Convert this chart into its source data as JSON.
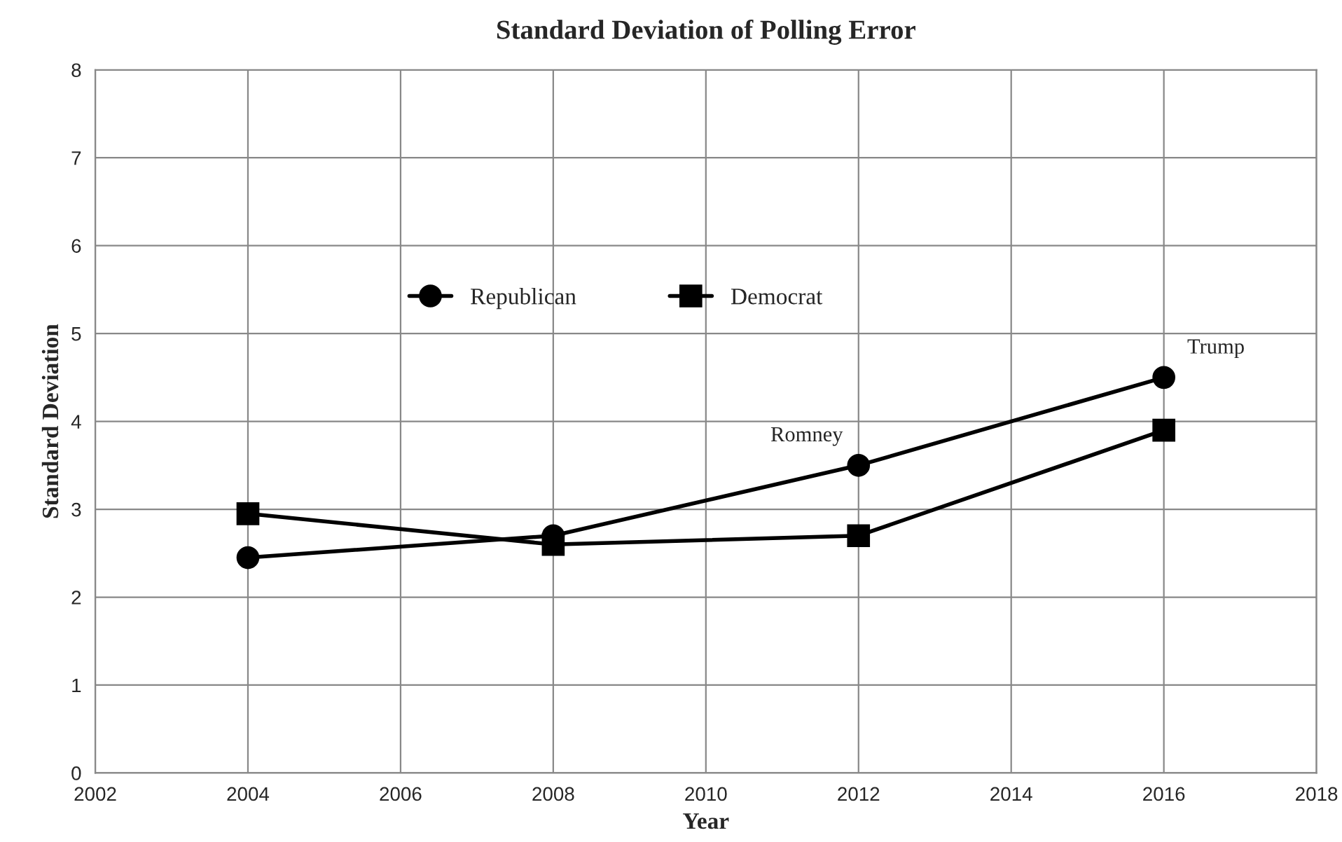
{
  "chart_data": {
    "type": "line",
    "title": "Standard Deviation of Polling Error",
    "xlabel": "Year",
    "ylabel": "Standard Deviation",
    "x": [
      2004,
      2008,
      2012,
      2016
    ],
    "series": [
      {
        "name": "Republican",
        "color": "#000000",
        "marker": "circle",
        "values": [
          2.45,
          2.7,
          3.5,
          4.5
        ]
      },
      {
        "name": "Democrat",
        "color": "#000000",
        "marker": "square",
        "values": [
          2.95,
          2.6,
          2.7,
          3.9
        ]
      }
    ],
    "annotations": [
      {
        "text": "Romney",
        "x": 2012,
        "y": 3.5
      },
      {
        "text": "Trump",
        "x": 2016,
        "y": 4.5
      }
    ],
    "xlim": [
      2002,
      2018
    ],
    "xticks": [
      2002,
      2004,
      2006,
      2008,
      2010,
      2012,
      2014,
      2016,
      2018
    ],
    "ylim": [
      0,
      8
    ],
    "yticks": [
      0,
      1,
      2,
      3,
      4,
      5,
      6,
      7,
      8
    ],
    "grid": true,
    "legend": "top left",
    "line_style": "solid"
  }
}
